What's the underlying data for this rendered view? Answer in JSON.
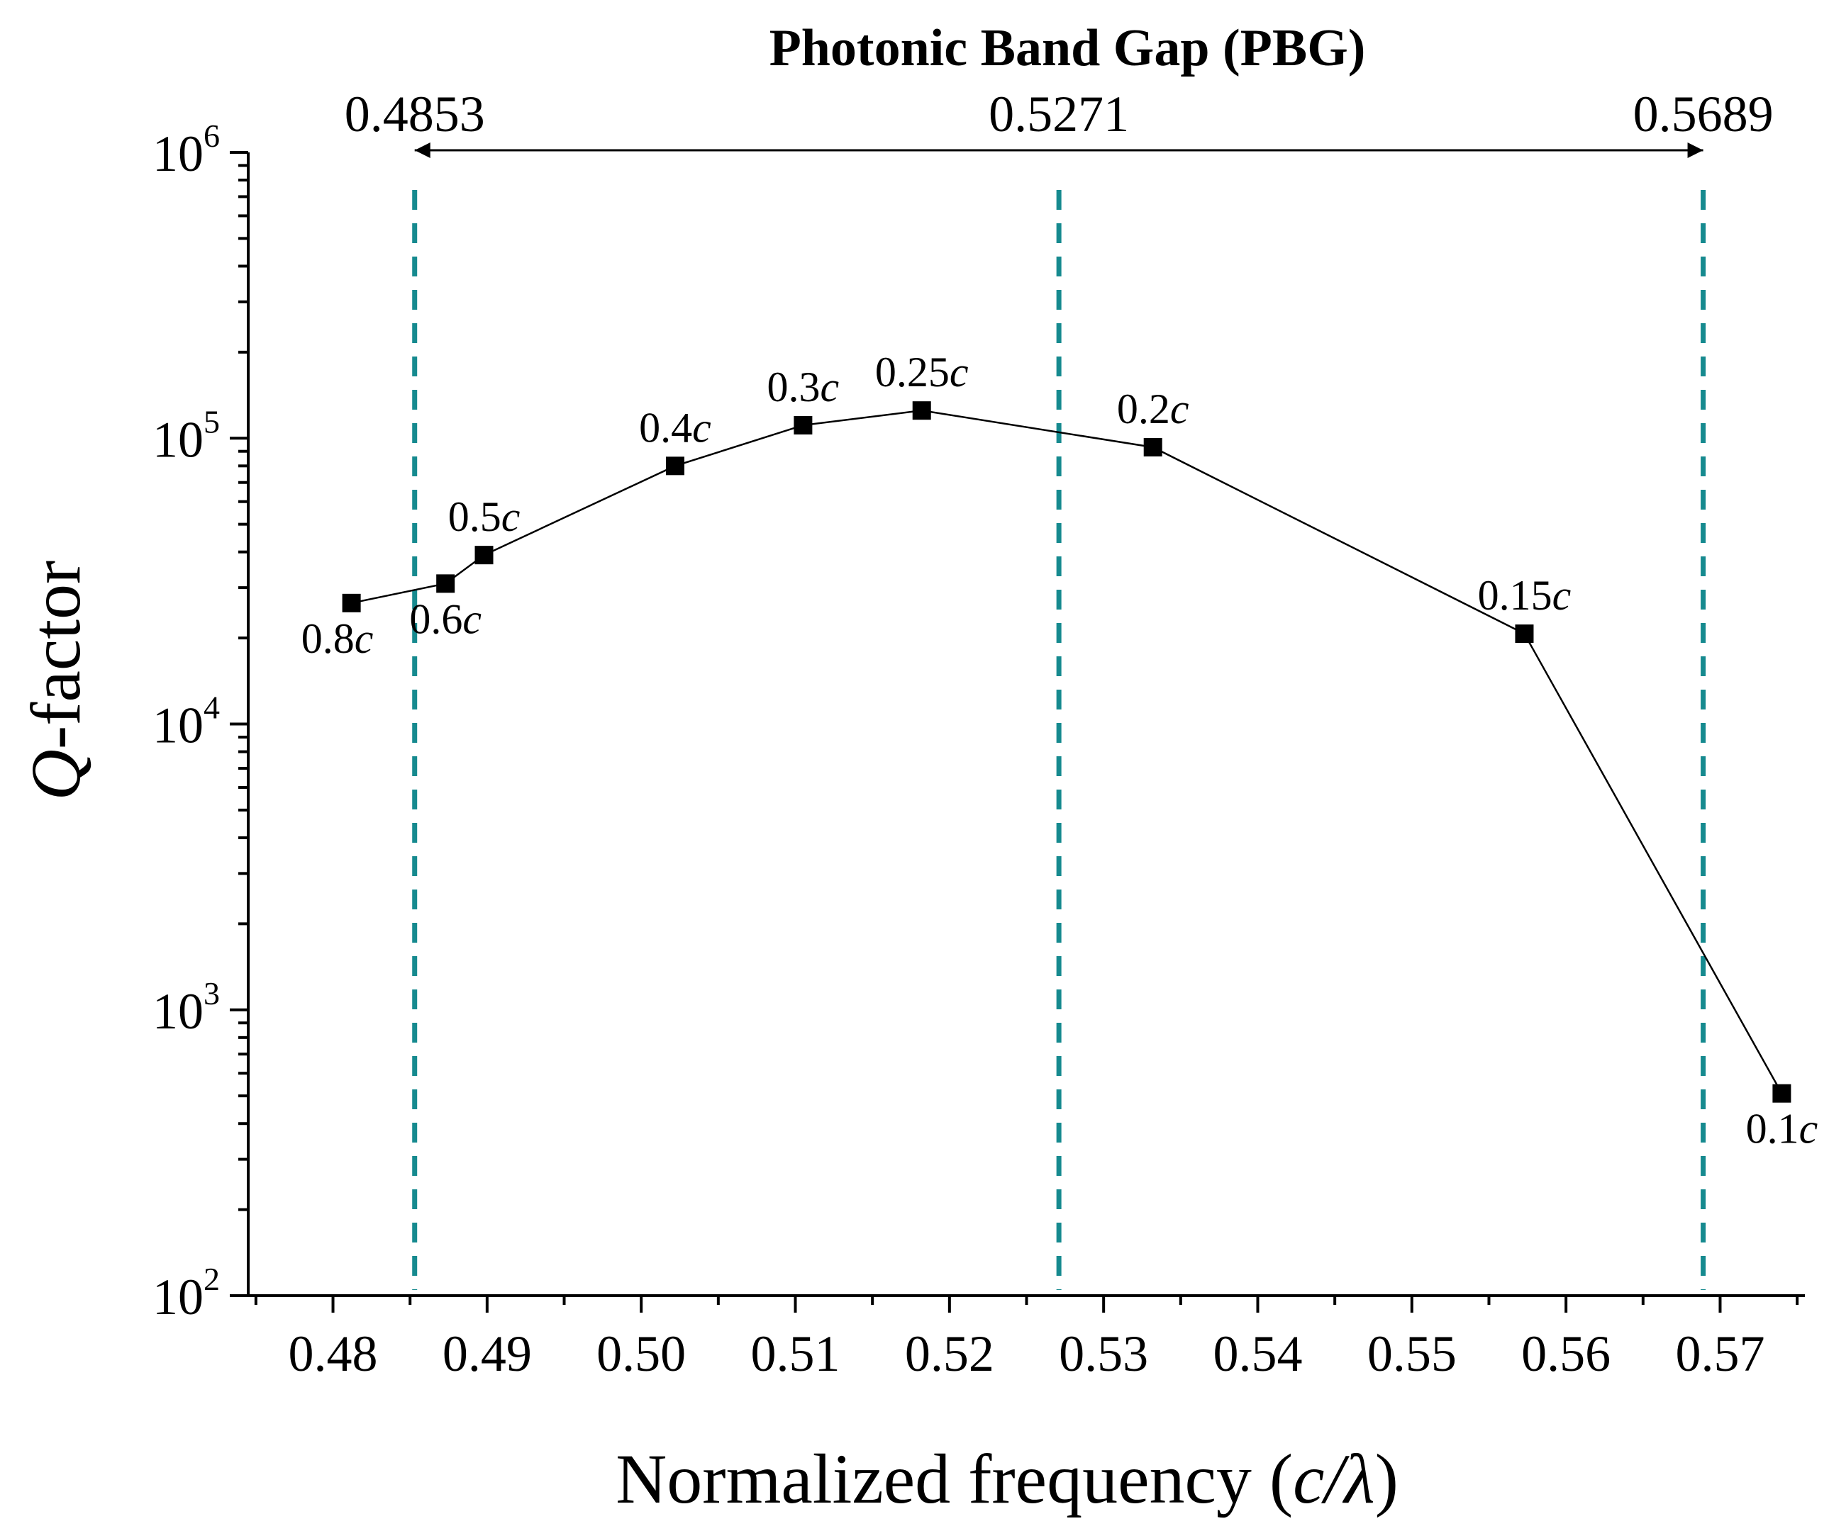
{
  "chart_data": {
    "type": "line",
    "title": "Photonic Band Gap (PBG)",
    "xlabel": {
      "prefix": "Normalized frequency (",
      "italic": "c/λ",
      "suffix": ")"
    },
    "ylabel": {
      "italic": "Q",
      "suffix": "-factor"
    },
    "xlim": [
      0.4745,
      0.5755
    ],
    "x_ticks": [
      "0.48",
      "0.49",
      "0.50",
      "0.51",
      "0.52",
      "0.53",
      "0.54",
      "0.55",
      "0.56",
      "0.57"
    ],
    "y_scale": "log",
    "ylim": [
      100,
      1000000
    ],
    "y_ticks": [
      {
        "base": "10",
        "exp": "2",
        "value": 100
      },
      {
        "base": "10",
        "exp": "3",
        "value": 1000
      },
      {
        "base": "10",
        "exp": "4",
        "value": 10000
      },
      {
        "base": "10",
        "exp": "5",
        "value": 100000
      },
      {
        "base": "10",
        "exp": "6",
        "value": 1000000
      }
    ],
    "series": [
      {
        "name": "Q-factor",
        "color": "#000000",
        "points": [
          {
            "x": 0.4812,
            "y": 26500,
            "num": "0.8",
            "unit": "c",
            "pos": "below-left"
          },
          {
            "x": 0.4873,
            "y": 31000,
            "num": "0.6",
            "unit": "c",
            "pos": "below"
          },
          {
            "x": 0.4898,
            "y": 39000,
            "num": "0.5",
            "unit": "c",
            "pos": "above"
          },
          {
            "x": 0.5022,
            "y": 80000,
            "num": "0.4",
            "unit": "c",
            "pos": "above"
          },
          {
            "x": 0.5105,
            "y": 111000,
            "num": "0.3",
            "unit": "c",
            "pos": "above"
          },
          {
            "x": 0.5182,
            "y": 125000,
            "num": "0.25",
            "unit": "c",
            "pos": "above"
          },
          {
            "x": 0.5332,
            "y": 93000,
            "num": "0.2",
            "unit": "c",
            "pos": "above"
          },
          {
            "x": 0.5573,
            "y": 20700,
            "num": "0.15",
            "unit": "c",
            "pos": "above"
          },
          {
            "x": 0.574,
            "y": 510,
            "num": "0.1",
            "unit": "c",
            "pos": "below"
          }
        ]
      }
    ],
    "vlines": [
      {
        "x": 0.4853,
        "label": "0.4853"
      },
      {
        "x": 0.5271,
        "label": "0.5271"
      },
      {
        "x": 0.5689,
        "label": "0.5689"
      }
    ],
    "vline_color": "#168a8f",
    "band_arrow": {
      "from": 0.4853,
      "to": 0.5689
    }
  }
}
